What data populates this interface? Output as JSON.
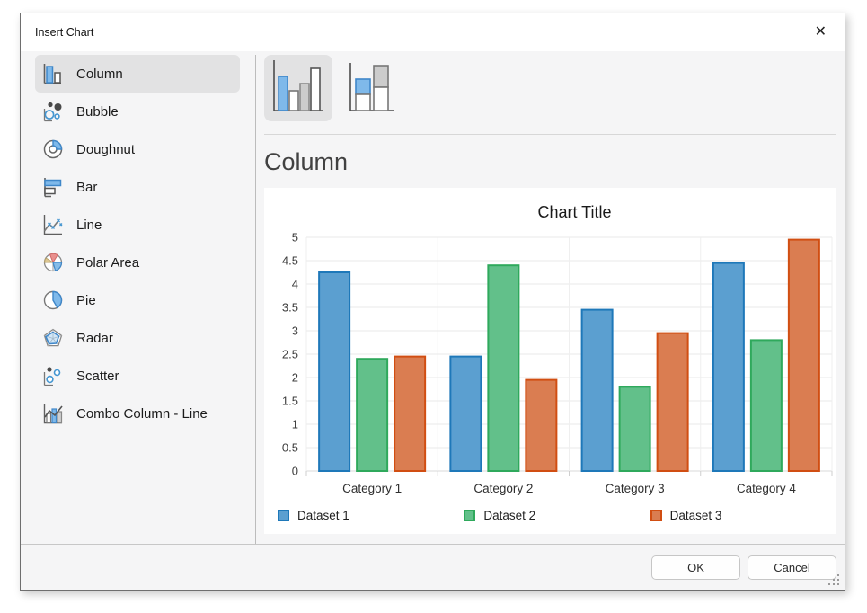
{
  "window": {
    "title": "Insert Chart",
    "close_icon": "✕"
  },
  "sidebar": {
    "items": [
      {
        "label": "Column",
        "icon": "column-chart-icon",
        "selected": true
      },
      {
        "label": "Bubble",
        "icon": "bubble-chart-icon",
        "selected": false
      },
      {
        "label": "Doughnut",
        "icon": "doughnut-chart-icon",
        "selected": false
      },
      {
        "label": "Bar",
        "icon": "bar-chart-icon",
        "selected": false
      },
      {
        "label": "Line",
        "icon": "line-chart-icon",
        "selected": false
      },
      {
        "label": "Polar Area",
        "icon": "polar-area-chart-icon",
        "selected": false
      },
      {
        "label": "Pie",
        "icon": "pie-chart-icon",
        "selected": false
      },
      {
        "label": "Radar",
        "icon": "radar-chart-icon",
        "selected": false
      },
      {
        "label": "Scatter",
        "icon": "scatter-chart-icon",
        "selected": false
      },
      {
        "label": "Combo Column - Line",
        "icon": "combo-column-line-chart-icon",
        "selected": false
      }
    ]
  },
  "variants": {
    "items": [
      {
        "icon": "clustered-column-thumbnail-icon",
        "selected": true
      },
      {
        "icon": "stacked-column-thumbnail-icon",
        "selected": false
      }
    ]
  },
  "panel": {
    "heading": "Column"
  },
  "chart_data": {
    "type": "bar",
    "title": "Chart Title",
    "categories": [
      "Category 1",
      "Category 2",
      "Category 3",
      "Category 4"
    ],
    "series": [
      {
        "name": "Dataset 1",
        "color": "#5b9fd0",
        "border": "#1e78b9",
        "values": [
          4.25,
          2.45,
          3.45,
          4.45
        ]
      },
      {
        "name": "Dataset 2",
        "color": "#62c08a",
        "border": "#2fa95c",
        "values": [
          2.4,
          4.4,
          1.8,
          2.8
        ]
      },
      {
        "name": "Dataset 3",
        "color": "#da7d51",
        "border": "#d14e12",
        "values": [
          2.45,
          1.95,
          2.95,
          4.95
        ]
      }
    ],
    "ylim": [
      0,
      5
    ],
    "ytick_step": 0.5,
    "grid": true,
    "legend_position": "bottom"
  },
  "footer": {
    "ok_label": "OK",
    "cancel_label": "Cancel"
  },
  "colors": {
    "icon_blue_fill": "#7fb9ea",
    "icon_blue_stroke": "#3f87c9",
    "selected_bg": "#e2e2e3",
    "dialog_bg": "#f5f5f6"
  }
}
